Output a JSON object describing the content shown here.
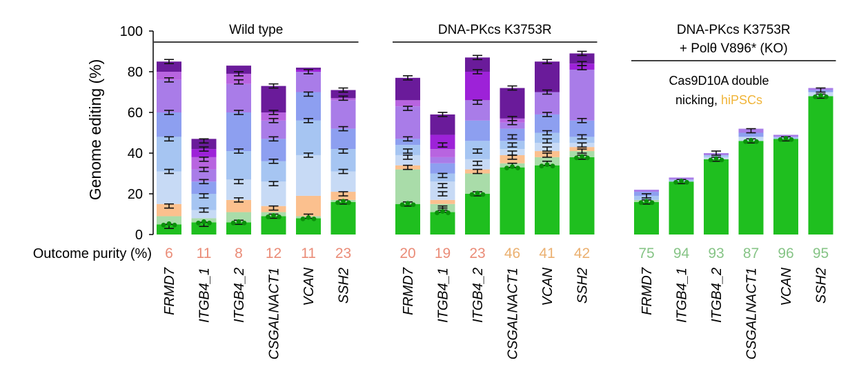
{
  "chart_data": {
    "type": "bar",
    "stacked": true,
    "ylabel": "Genome editing (%)",
    "ylim": [
      0,
      100
    ],
    "yticks": [
      0,
      20,
      40,
      60,
      80,
      100
    ],
    "purity_label": "Outcome purity (%)",
    "annotation": {
      "line1": "Cas9D10A double",
      "line2_a": "nicking, ",
      "line2_b": "hiPSCs"
    },
    "colors": {
      "green": "#1fbf1f",
      "light_green": "#a9dca9",
      "peach": "#fbc08e",
      "pale_blue": "#c7daf5",
      "light_blue": "#a6c5f2",
      "periwinkle": "#8d9ff0",
      "violet": "#a97ce8",
      "purple": "#b864e0",
      "magenta": "#9d22d8",
      "dark_purple": "#6a1b9a",
      "annotation_orange": "#f0b438",
      "purity_low": "#ea8c78",
      "purity_mid": "#ebb070",
      "purity_high": "#86c486"
    },
    "groups": [
      {
        "title": "Wild type",
        "title_line2": "",
        "categories": [
          "FRMD7",
          "ITGB4_1",
          "ITGB4_2",
          "CSGALNACT1",
          "VCAN",
          "SSH2"
        ],
        "outcome_purity": [
          "6",
          "11",
          "8",
          "12",
          "11",
          "23"
        ],
        "purity_color": "purity_low",
        "stacks": [
          [
            [
              5,
              "green"
            ],
            [
              4,
              "light_green"
            ],
            [
              6,
              "peach"
            ],
            [
              16,
              "pale_blue"
            ],
            [
              17,
              "light_blue"
            ],
            [
              12,
              "periwinkle"
            ],
            [
              16,
              "violet"
            ],
            [
              4,
              "purple"
            ],
            [
              5,
              "dark_purple"
            ]
          ],
          [
            [
              6,
              "green"
            ],
            [
              2,
              "light_green"
            ],
            [
              4,
              "pale_blue"
            ],
            [
              8,
              "light_blue"
            ],
            [
              6,
              "periwinkle"
            ],
            [
              6,
              "violet"
            ],
            [
              6,
              "purple"
            ],
            [
              4,
              "magenta"
            ],
            [
              5,
              "dark_purple"
            ]
          ],
          [
            [
              6,
              "green"
            ],
            [
              5,
              "light_green"
            ],
            [
              6,
              "peach"
            ],
            [
              10,
              "pale_blue"
            ],
            [
              14,
              "light_blue"
            ],
            [
              19,
              "periwinkle"
            ],
            [
              14,
              "violet"
            ],
            [
              5,
              "purple"
            ],
            [
              4,
              "dark_purple"
            ]
          ],
          [
            [
              9,
              "green"
            ],
            [
              2,
              "light_green"
            ],
            [
              3,
              "peach"
            ],
            [
              12,
              "pale_blue"
            ],
            [
              10,
              "light_blue"
            ],
            [
              11,
              "periwinkle"
            ],
            [
              9,
              "violet"
            ],
            [
              4,
              "purple"
            ],
            [
              13,
              "dark_purple"
            ]
          ],
          [
            [
              8,
              "green"
            ],
            [
              1,
              "light_green"
            ],
            [
              10,
              "peach"
            ],
            [
              20,
              "pale_blue"
            ],
            [
              17,
              "light_blue"
            ],
            [
              14,
              "periwinkle"
            ],
            [
              10,
              "violet"
            ],
            [
              1,
              "magenta"
            ],
            [
              1,
              "dark_purple"
            ]
          ],
          [
            [
              16,
              "green"
            ],
            [
              1,
              "light_green"
            ],
            [
              4,
              "peach"
            ],
            [
              10,
              "pale_blue"
            ],
            [
              11,
              "light_blue"
            ],
            [
              10,
              "periwinkle"
            ],
            [
              14,
              "violet"
            ],
            [
              1,
              "purple"
            ],
            [
              4,
              "dark_purple"
            ]
          ]
        ],
        "errors": [
          [
            4,
            14,
            31,
            47,
            60,
            76,
            85
          ],
          [
            5,
            12,
            19,
            26,
            32,
            37,
            42,
            46
          ],
          [
            6,
            17,
            26,
            41,
            60,
            75,
            79
          ],
          [
            9,
            13,
            25,
            36,
            47,
            56,
            60,
            73
          ],
          [
            9,
            39,
            56,
            69,
            80
          ],
          [
            16,
            20,
            31,
            41,
            52,
            67,
            71
          ]
        ]
      },
      {
        "title": "DNA-PKcs K3753R",
        "title_line2": "",
        "categories": [
          "FRMD7",
          "ITGB4_1",
          "ITGB4_2",
          "CSGALNACT1",
          "VCAN",
          "SSH2"
        ],
        "outcome_purity": [
          "20",
          "19",
          "23",
          "46",
          "41",
          "42"
        ],
        "purity_color": "purity_low",
        "stacks": [
          [
            [
              15,
              "green"
            ],
            [
              17,
              "light_green"
            ],
            [
              2,
              "peach"
            ],
            [
              5,
              "pale_blue"
            ],
            [
              5,
              "light_blue"
            ],
            [
              3,
              "periwinkle"
            ],
            [
              16,
              "violet"
            ],
            [
              3,
              "purple"
            ],
            [
              11,
              "dark_purple"
            ]
          ],
          [
            [
              11,
              "green"
            ],
            [
              4,
              "light_green"
            ],
            [
              2,
              "peach"
            ],
            [
              9,
              "pale_blue"
            ],
            [
              4,
              "light_blue"
            ],
            [
              5,
              "periwinkle"
            ],
            [
              3,
              "violet"
            ],
            [
              4,
              "purple"
            ],
            [
              7,
              "magenta"
            ],
            [
              10,
              "dark_purple"
            ]
          ],
          [
            [
              20,
              "green"
            ],
            [
              10,
              "light_green"
            ],
            [
              2,
              "peach"
            ],
            [
              5,
              "pale_blue"
            ],
            [
              9,
              "light_blue"
            ],
            [
              10,
              "periwinkle"
            ],
            [
              10,
              "violet"
            ],
            [
              14,
              "magenta"
            ],
            [
              7,
              "dark_purple"
            ]
          ],
          [
            [
              33,
              "green"
            ],
            [
              2,
              "light_green"
            ],
            [
              4,
              "peach"
            ],
            [
              3,
              "pale_blue"
            ],
            [
              4,
              "light_blue"
            ],
            [
              6,
              "periwinkle"
            ],
            [
              3,
              "violet"
            ],
            [
              2,
              "purple"
            ],
            [
              15,
              "dark_purple"
            ]
          ],
          [
            [
              34,
              "green"
            ],
            [
              4,
              "light_green"
            ],
            [
              3,
              "peach"
            ],
            [
              4,
              "pale_blue"
            ],
            [
              5,
              "light_blue"
            ],
            [
              9,
              "periwinkle"
            ],
            [
              11,
              "violet"
            ],
            [
              15,
              "dark_purple"
            ]
          ],
          [
            [
              38,
              "green"
            ],
            [
              3,
              "light_green"
            ],
            [
              2,
              "peach"
            ],
            [
              2,
              "pale_blue"
            ],
            [
              3,
              "light_blue"
            ],
            [
              8,
              "periwinkle"
            ],
            [
              25,
              "violet"
            ],
            [
              3,
              "magenta"
            ],
            [
              5,
              "dark_purple"
            ]
          ]
        ],
        "errors": [
          [
            15,
            33,
            38,
            41,
            47,
            62,
            77
          ],
          [
            12,
            13,
            20,
            24,
            29,
            44,
            59
          ],
          [
            20,
            31,
            35,
            41,
            65,
            80,
            87
          ],
          [
            34,
            38,
            40,
            44,
            48,
            55,
            57,
            72
          ],
          [
            35,
            39,
            42,
            46,
            50,
            59,
            70,
            85
          ],
          [
            38,
            41,
            44,
            48,
            56,
            82,
            84,
            89
          ]
        ]
      },
      {
        "title": "DNA-PKcs K3753R",
        "title_line2": "+ Polθ V896* (KO)",
        "categories": [
          "FRMD7",
          "ITGB4_1",
          "ITGB4_2",
          "CSGALNACT1",
          "VCAN",
          "SSH2"
        ],
        "outcome_purity": [
          "75",
          "94",
          "93",
          "87",
          "96",
          "95"
        ],
        "purity_color": "purity_high",
        "stacks": [
          [
            [
              16,
              "green"
            ],
            [
              1,
              "light_green"
            ],
            [
              2,
              "light_blue"
            ],
            [
              2,
              "periwinkle"
            ],
            [
              1,
              "violet"
            ]
          ],
          [
            [
              26,
              "green"
            ],
            [
              1,
              "light_blue"
            ],
            [
              1,
              "violet"
            ]
          ],
          [
            [
              37,
              "green"
            ],
            [
              1,
              "pale_blue"
            ],
            [
              1,
              "light_blue"
            ],
            [
              1,
              "violet"
            ]
          ],
          [
            [
              46,
              "green"
            ],
            [
              2,
              "pale_blue"
            ],
            [
              2,
              "periwinkle"
            ],
            [
              2,
              "violet"
            ]
          ],
          [
            [
              47,
              "green"
            ],
            [
              1,
              "light_blue"
            ],
            [
              1,
              "violet"
            ]
          ],
          [
            [
              68,
              "green"
            ],
            [
              2,
              "pale_blue"
            ],
            [
              1,
              "periwinkle"
            ],
            [
              1,
              "violet"
            ]
          ]
        ],
        "errors": [
          [
            16,
            19
          ],
          [
            26
          ],
          [
            37,
            40
          ],
          [
            46,
            51
          ],
          [
            47
          ],
          [
            68,
            71
          ]
        ]
      }
    ]
  }
}
